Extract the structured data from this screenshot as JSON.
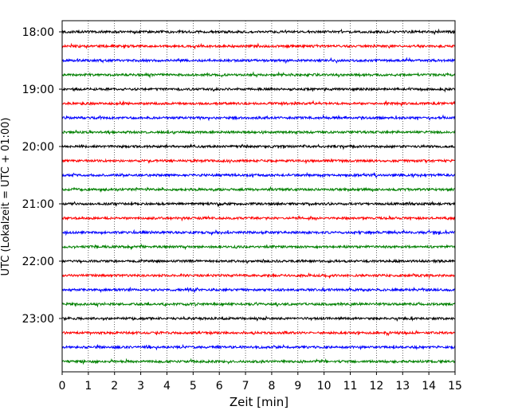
{
  "chart_data": {
    "type": "line",
    "title": "",
    "xlabel": "Zeit  [min]",
    "ylabel": "UTC (Lokalzeit = UTC + 01:00)",
    "xlim": [
      0,
      15
    ],
    "x_ticks": [
      "0",
      "1",
      "2",
      "3",
      "4",
      "5",
      "6",
      "7",
      "8",
      "9",
      "10",
      "11",
      "12",
      "13",
      "14",
      "15"
    ],
    "grid": "vertical dotted at every minute",
    "trace_interval_min": 15,
    "y_ticks": [
      {
        "label": "18:00",
        "row": 0
      },
      {
        "label": "19:00",
        "row": 4
      },
      {
        "label": "20:00",
        "row": 8
      },
      {
        "label": "21:00",
        "row": 12
      },
      {
        "label": "22:00",
        "row": 16
      },
      {
        "label": "23:00",
        "row": 20
      }
    ],
    "series": [
      {
        "start": "18:00",
        "color": "#000000"
      },
      {
        "start": "18:15",
        "color": "#ff0000"
      },
      {
        "start": "18:30",
        "color": "#0000ff"
      },
      {
        "start": "18:45",
        "color": "#008000"
      },
      {
        "start": "19:00",
        "color": "#000000"
      },
      {
        "start": "19:15",
        "color": "#ff0000"
      },
      {
        "start": "19:30",
        "color": "#0000ff"
      },
      {
        "start": "19:45",
        "color": "#008000"
      },
      {
        "start": "20:00",
        "color": "#000000"
      },
      {
        "start": "20:15",
        "color": "#ff0000"
      },
      {
        "start": "20:30",
        "color": "#0000ff"
      },
      {
        "start": "20:45",
        "color": "#008000"
      },
      {
        "start": "21:00",
        "color": "#000000"
      },
      {
        "start": "21:15",
        "color": "#ff0000"
      },
      {
        "start": "21:30",
        "color": "#0000ff"
      },
      {
        "start": "21:45",
        "color": "#008000"
      },
      {
        "start": "22:00",
        "color": "#000000"
      },
      {
        "start": "22:15",
        "color": "#ff0000"
      },
      {
        "start": "22:30",
        "color": "#0000ff"
      },
      {
        "start": "22:45",
        "color": "#008000"
      },
      {
        "start": "23:00",
        "color": "#000000"
      },
      {
        "start": "23:15",
        "color": "#ff0000"
      },
      {
        "start": "23:30",
        "color": "#0000ff"
      },
      {
        "start": "23:45",
        "color": "#008000"
      }
    ]
  }
}
